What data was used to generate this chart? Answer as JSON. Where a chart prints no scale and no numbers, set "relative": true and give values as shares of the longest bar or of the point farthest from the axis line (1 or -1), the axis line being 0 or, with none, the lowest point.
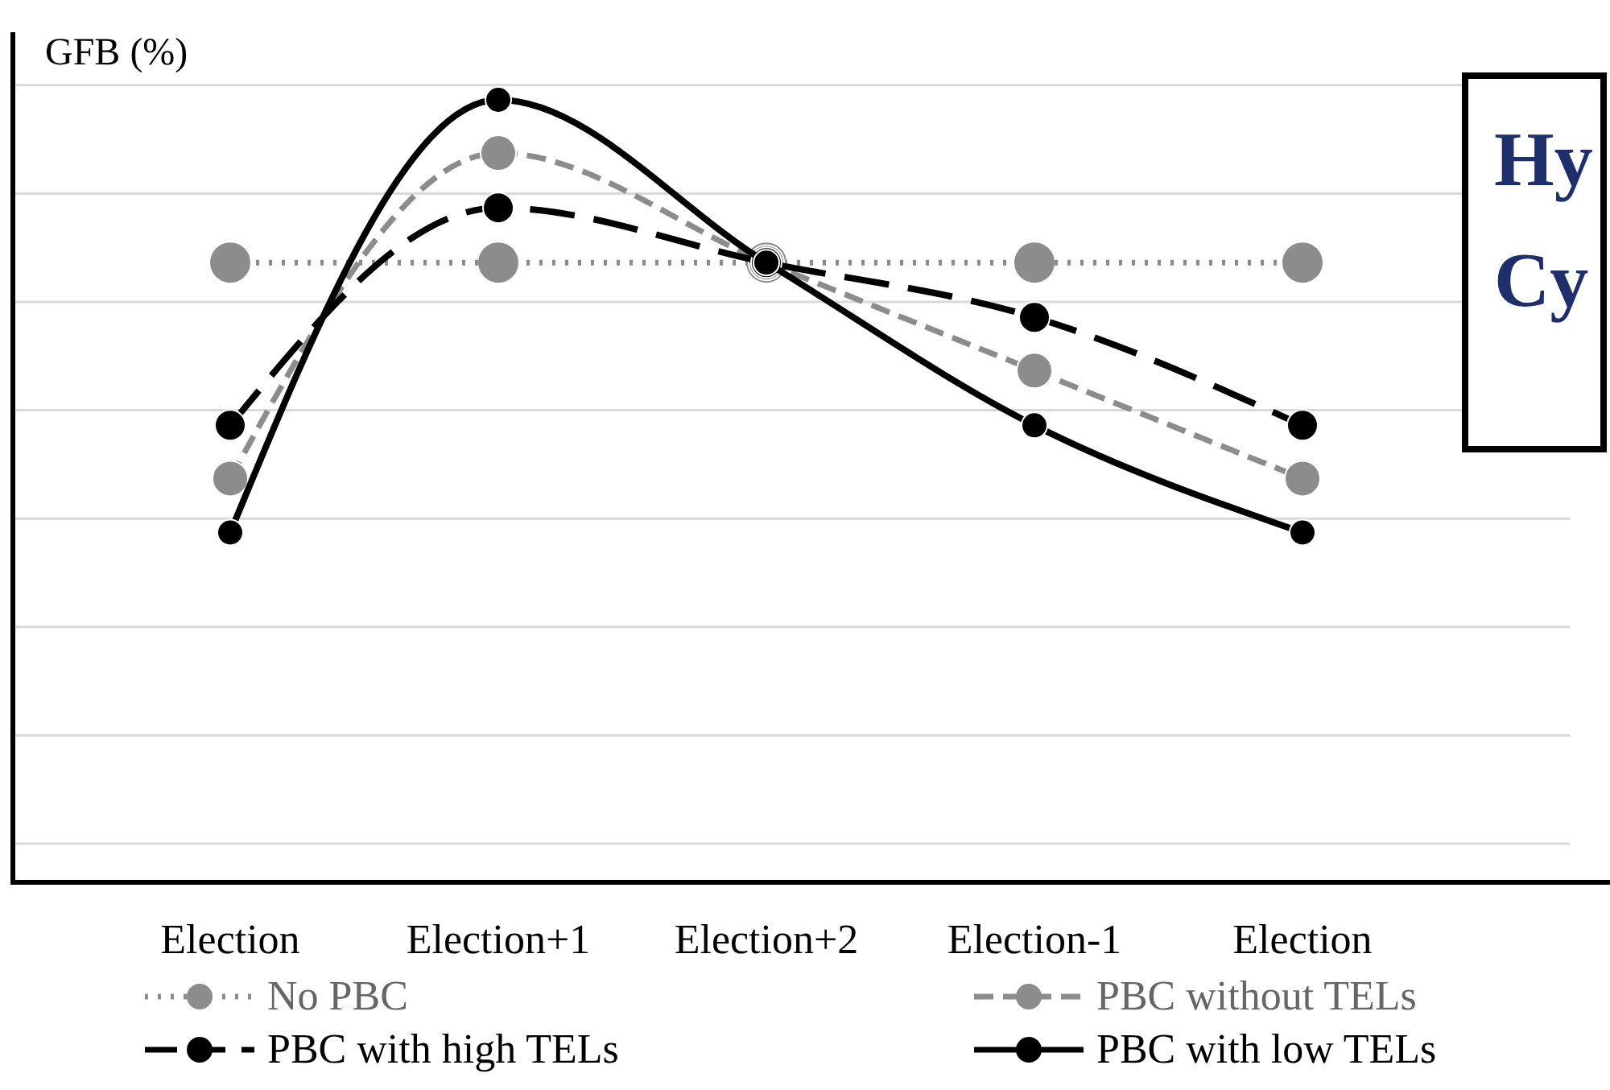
{
  "chart_data": {
    "type": "line",
    "relative": true,
    "ylabel": "GFB (%)",
    "categories": [
      "Election",
      "Election+1",
      "Election+2",
      "Election-1",
      "Election"
    ],
    "series": [
      {
        "name": "No PBC",
        "color": "#8c8c8c",
        "line_style": "dotted",
        "values": [
          0.792,
          0.792,
          0.792,
          0.792,
          0.792
        ]
      },
      {
        "name": "PBC without TELs",
        "color": "#8c8c8c",
        "line_style": "dashed",
        "values": [
          0.516,
          0.932,
          0.792,
          0.654,
          0.516
        ]
      },
      {
        "name": "PBC with high TELs",
        "color": "#000000",
        "line_style": "dashed",
        "values": [
          0.584,
          0.862,
          0.792,
          0.722,
          0.584
        ]
      },
      {
        "name": "PBC with low TELs",
        "color": "#000000",
        "line_style": "solid",
        "values": [
          0.447,
          1,
          0.792,
          0.584,
          0.447
        ]
      }
    ],
    "marker": "circle",
    "grid": true,
    "legend": "bottom",
    "annotations": [
      "Hy",
      "Cy"
    ]
  }
}
